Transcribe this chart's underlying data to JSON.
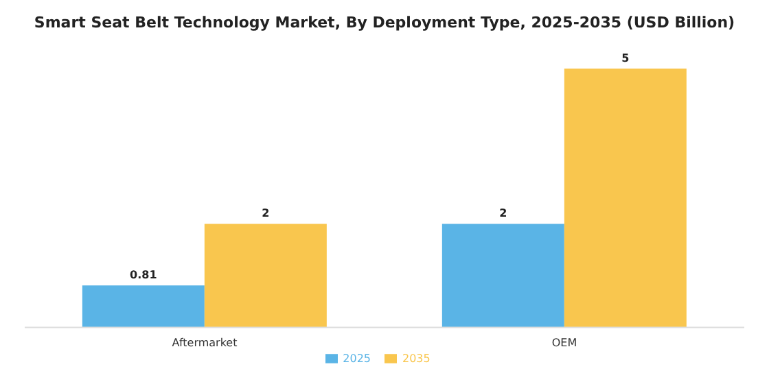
{
  "chart_data": {
    "type": "bar",
    "title": "Smart Seat Belt Technology Market, By Deployment Type, 2025-2035 (USD Billion)",
    "categories": [
      "Aftermarket",
      "OEM"
    ],
    "series": [
      {
        "name": "2025",
        "color": "#5ab4e6",
        "values": [
          0.81,
          2
        ]
      },
      {
        "name": "2035",
        "color": "#f9c64e",
        "values": [
          2,
          5
        ]
      }
    ],
    "data_labels": true,
    "legend": "bottom",
    "grid": false
  }
}
